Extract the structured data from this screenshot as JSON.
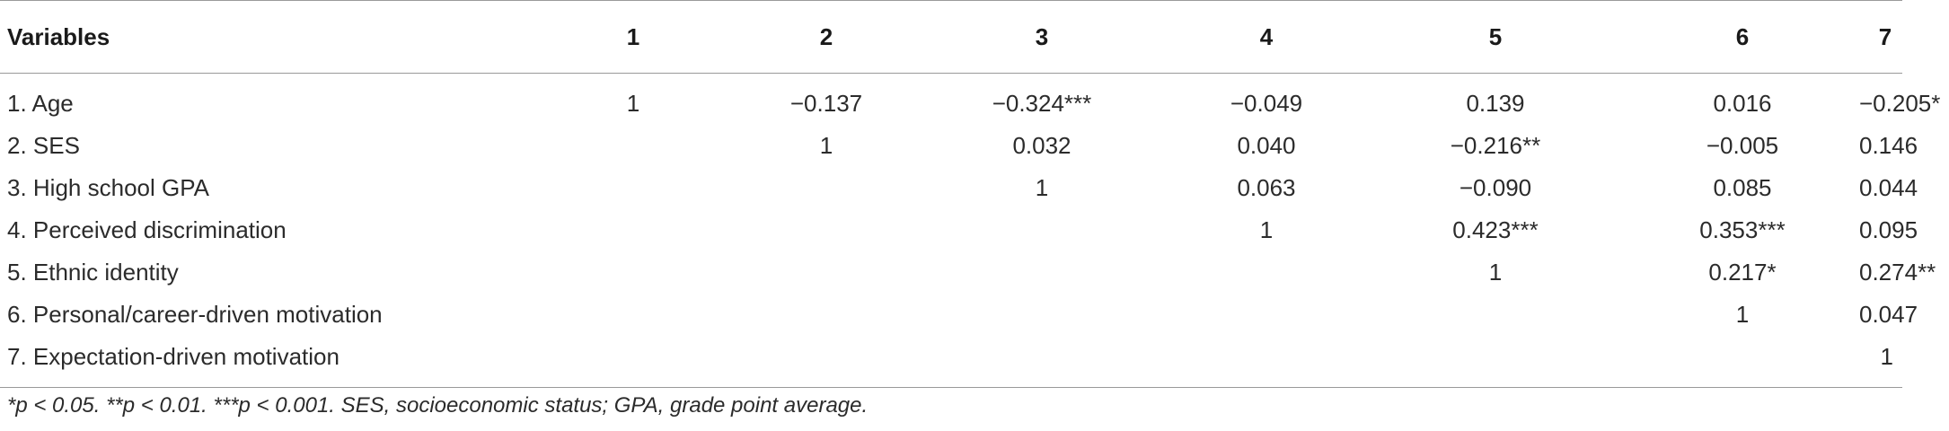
{
  "table": {
    "headers": [
      "Variables",
      "1",
      "2",
      "3",
      "4",
      "5",
      "6",
      "7"
    ],
    "rows": [
      {
        "label": "1. Age",
        "cells": [
          "1",
          "−0.137",
          "−0.324***",
          "−0.049",
          "0.139",
          "0.016",
          "−0.205*"
        ]
      },
      {
        "label": "2. SES",
        "cells": [
          "",
          "1",
          "0.032",
          "0.040",
          "−0.216**",
          "−0.005",
          "0.146"
        ]
      },
      {
        "label": "3. High school GPA",
        "cells": [
          "",
          "",
          "1",
          "0.063",
          "−0.090",
          "0.085",
          "0.044"
        ]
      },
      {
        "label": "4. Perceived discrimination",
        "cells": [
          "",
          "",
          "",
          "1",
          "0.423***",
          "0.353***",
          "0.095"
        ]
      },
      {
        "label": "5. Ethnic identity",
        "cells": [
          "",
          "",
          "",
          "",
          "1",
          "0.217*",
          "0.274**"
        ]
      },
      {
        "label": "6. Personal/career-driven motivation",
        "cells": [
          "",
          "",
          "",
          "",
          "",
          "1",
          "0.047"
        ]
      },
      {
        "label": "7. Expectation-driven motivation",
        "cells": [
          "",
          "",
          "",
          "",
          "",
          "",
          "1"
        ]
      }
    ]
  },
  "note": "*p < 0.05. **p < 0.01. ***p < 0.001. SES, socioeconomic status; GPA, grade point average."
}
